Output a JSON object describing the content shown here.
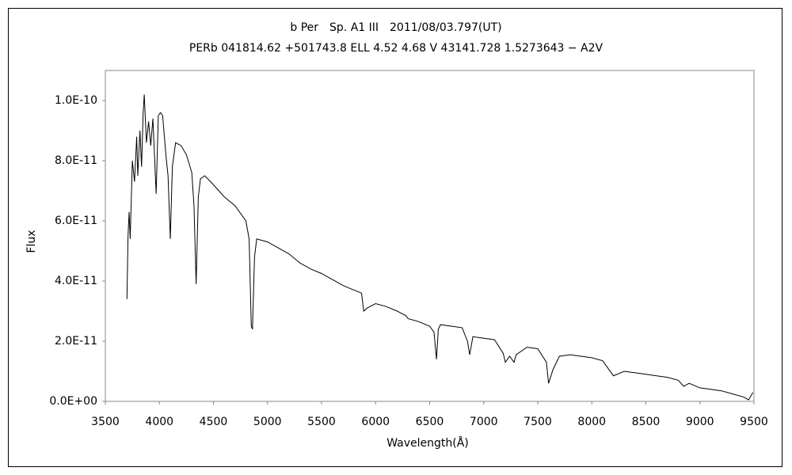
{
  "chart_data": {
    "type": "line",
    "title": "b Per　Sp. A1 III　2011/08/03.797(UT)",
    "subtitle": "PERb 041814.62 +501743.8 ELL 4.52 4.68 V 43141.728 1.5273643 − A2V",
    "xlabel": "Wavelength(Å)",
    "ylabel": "Flux",
    "color": "#000000",
    "xlim": [
      3500,
      9500
    ],
    "xticks": [
      3500,
      4000,
      4500,
      5000,
      5500,
      6000,
      6500,
      7000,
      7500,
      8000,
      8500,
      9000,
      9500
    ],
    "ylim": [
      0,
      1.1e-10
    ],
    "yticks": [
      {
        "value": 0,
        "label": "0.0E+00"
      },
      {
        "value": 2e-11,
        "label": "2.0E-11"
      },
      {
        "value": 4e-11,
        "label": "4.0E-11"
      },
      {
        "value": 6e-11,
        "label": "6.0E-11"
      },
      {
        "value": 8e-11,
        "label": "8.0E-11"
      },
      {
        "value": 1e-10,
        "label": "1.0E-10"
      }
    ],
    "x": [
      3700,
      3710,
      3720,
      3730,
      3750,
      3770,
      3790,
      3800,
      3820,
      3835,
      3850,
      3860,
      3880,
      3900,
      3920,
      3940,
      3970,
      3990,
      4010,
      4030,
      4060,
      4080,
      4101,
      4120,
      4150,
      4200,
      4250,
      4300,
      4320,
      4340,
      4360,
      4380,
      4420,
      4500,
      4600,
      4700,
      4800,
      4830,
      4850,
      4861,
      4880,
      4900,
      5000,
      5100,
      5200,
      5300,
      5400,
      5500,
      5600,
      5700,
      5800,
      5870,
      5890,
      5920,
      6000,
      6100,
      6200,
      6280,
      6300,
      6400,
      6500,
      6540,
      6563,
      6580,
      6600,
      6700,
      6800,
      6850,
      6870,
      6900,
      7000,
      7100,
      7180,
      7200,
      7240,
      7280,
      7300,
      7400,
      7500,
      7580,
      7600,
      7640,
      7700,
      7800,
      7900,
      8000,
      8100,
      8200,
      8300,
      8400,
      8500,
      8600,
      8700,
      8800,
      8850,
      8900,
      9000,
      9100,
      9200,
      9300,
      9400,
      9450,
      9490
    ],
    "y": [
      3.4e-11,
      5.5e-11,
      6.3e-11,
      5.4e-11,
      8e-11,
      7.3e-11,
      8.8e-11,
      7.5e-11,
      9e-11,
      7.8e-11,
      9.6e-11,
      1.02e-10,
      8.6e-11,
      9.3e-11,
      8.5e-11,
      9.4e-11,
      6.9e-11,
      9.5e-11,
      9.6e-11,
      9.5e-11,
      8.2e-11,
      7.5e-11,
      5.4e-11,
      7.8e-11,
      8.6e-11,
      8.5e-11,
      8.2e-11,
      7.6e-11,
      6.5e-11,
      3.9e-11,
      6.8e-11,
      7.4e-11,
      7.5e-11,
      7.2e-11,
      6.8e-11,
      6.5e-11,
      6e-11,
      5.4e-11,
      2.5e-11,
      2.4e-11,
      4.8e-11,
      5.4e-11,
      5.3e-11,
      5.1e-11,
      4.9e-11,
      4.6e-11,
      4.4e-11,
      4.25e-11,
      4.05e-11,
      3.85e-11,
      3.7e-11,
      3.6e-11,
      3e-11,
      3.1e-11,
      3.25e-11,
      3.15e-11,
      3e-11,
      2.85e-11,
      2.75e-11,
      2.65e-11,
      2.5e-11,
      2.3e-11,
      1.4e-11,
      2.4e-11,
      2.55e-11,
      2.5e-11,
      2.45e-11,
      2e-11,
      1.55e-11,
      2.15e-11,
      2.1e-11,
      2.05e-11,
      1.6e-11,
      1.3e-11,
      1.5e-11,
      1.3e-11,
      1.55e-11,
      1.8e-11,
      1.75e-11,
      1.3e-11,
      6e-12,
      1.05e-11,
      1.5e-11,
      1.55e-11,
      1.5e-11,
      1.45e-11,
      1.35e-11,
      8.5e-12,
      1e-11,
      9.5e-12,
      9e-12,
      8.5e-12,
      8e-12,
      7e-12,
      5e-12,
      6e-12,
      4.5e-12,
      4e-12,
      3.5e-12,
      2.5e-12,
      1.5e-12,
      5e-13,
      3e-12
    ]
  }
}
